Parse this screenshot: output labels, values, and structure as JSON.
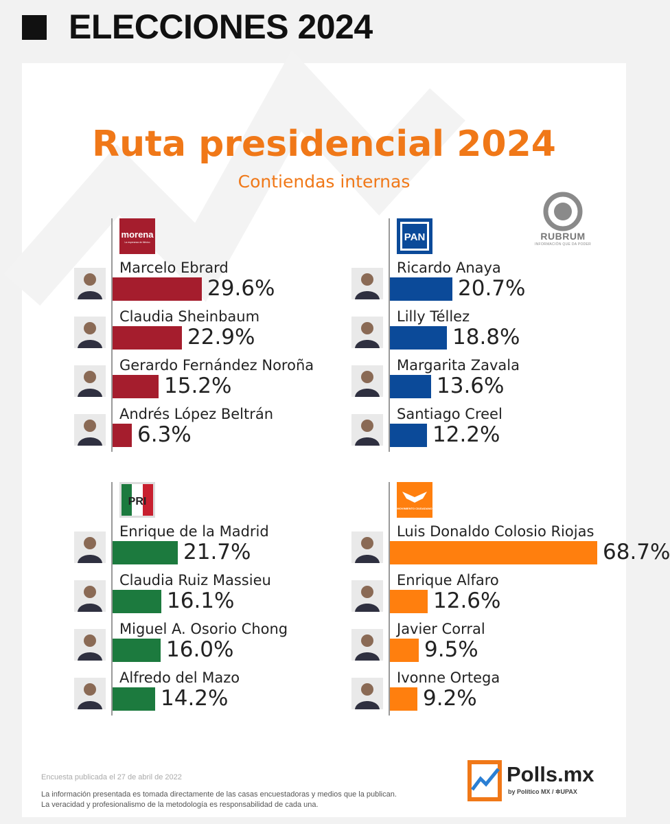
{
  "header": {
    "title": "ELECCIONES 2024"
  },
  "infographic": {
    "title": "Ruta presidencial 2024",
    "subtitle": "Contiendas internas",
    "rubrum": {
      "name": "RUBRUM",
      "tagline": "INFORMACIÓN QUE DA PODER"
    },
    "source_note": "Encuesta publicada el 27 de abril de 2022",
    "disclaimer_1": "La información presentada es tomada directamente de las casas encuestadoras y medios que la publican.",
    "disclaimer_2": "La veracidad y profesionalismo de la metodología es responsabilidad de cada una.",
    "brand": {
      "name": "Polls.mx",
      "by": "by Político MX / ✲UPAX"
    },
    "logos": {
      "morena_text": "morena",
      "morena_sub": "La esperanza de México",
      "pan_text": "PAN",
      "pri_text": "PRI",
      "mc_text": "MOVIMIENTO CIUDADANO"
    }
  },
  "chart_data": [
    {
      "type": "bar",
      "party": "morena",
      "color": "#a51d2d",
      "categories": [
        "Marcelo Ebrard",
        "Claudia Sheinbaum",
        "Gerardo Fernández Noroña",
        "Andrés López Beltrán"
      ],
      "values": [
        29.6,
        22.9,
        15.2,
        6.3
      ],
      "labels": [
        "29.6%",
        "22.9%",
        "15.2%",
        "6.3%"
      ]
    },
    {
      "type": "bar",
      "party": "PAN",
      "color": "#0b4a99",
      "categories": [
        "Ricardo Anaya",
        "Lilly Téllez",
        "Margarita Zavala",
        "Santiago Creel"
      ],
      "values": [
        20.7,
        18.8,
        13.6,
        12.2
      ],
      "labels": [
        "20.7%",
        "18.8%",
        "13.6%",
        "12.2%"
      ]
    },
    {
      "type": "bar",
      "party": "PRI",
      "color": "#1c7a3e",
      "categories": [
        "Enrique de la Madrid",
        "Claudia Ruiz Massieu",
        "Miguel A. Osorio Chong",
        "Alfredo del Mazo"
      ],
      "values": [
        21.7,
        16.1,
        16.0,
        14.2
      ],
      "labels": [
        "21.7%",
        "16.1%",
        "16.0%",
        "14.2%"
      ]
    },
    {
      "type": "bar",
      "party": "Movimiento Ciudadano",
      "color": "#ff7f0e",
      "categories": [
        "Luis Donaldo Colosio Riojas",
        "Enrique Alfaro",
        "Javier Corral",
        "Ivonne Ortega"
      ],
      "values": [
        68.7,
        12.6,
        9.5,
        9.2
      ],
      "labels": [
        "68.7%",
        "12.6%",
        "9.5%",
        "9.2%"
      ]
    }
  ]
}
